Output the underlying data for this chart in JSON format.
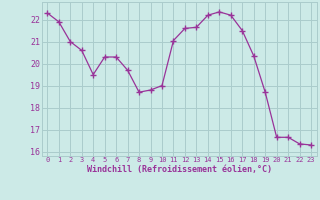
{
  "x": [
    0,
    1,
    2,
    3,
    4,
    5,
    6,
    7,
    8,
    9,
    10,
    11,
    12,
    13,
    14,
    15,
    16,
    17,
    18,
    19,
    20,
    21,
    22,
    23
  ],
  "y": [
    22.3,
    21.9,
    21.0,
    20.6,
    19.5,
    20.3,
    20.3,
    19.7,
    18.7,
    18.8,
    19.0,
    21.05,
    21.6,
    21.65,
    22.2,
    22.35,
    22.2,
    21.5,
    20.35,
    18.7,
    16.65,
    16.65,
    16.35,
    16.3
  ],
  "line_color": "#993399",
  "marker": "+",
  "marker_size": 4,
  "bg_color": "#cceae7",
  "grid_color": "#aacccc",
  "xlabel": "Windchill (Refroidissement éolien,°C)",
  "xlabel_color": "#993399",
  "tick_color": "#993399",
  "ylim": [
    15.8,
    22.8
  ],
  "yticks": [
    16,
    17,
    18,
    19,
    20,
    21,
    22
  ],
  "xticks": [
    0,
    1,
    2,
    3,
    4,
    5,
    6,
    7,
    8,
    9,
    10,
    11,
    12,
    13,
    14,
    15,
    16,
    17,
    18,
    19,
    20,
    21,
    22,
    23
  ]
}
